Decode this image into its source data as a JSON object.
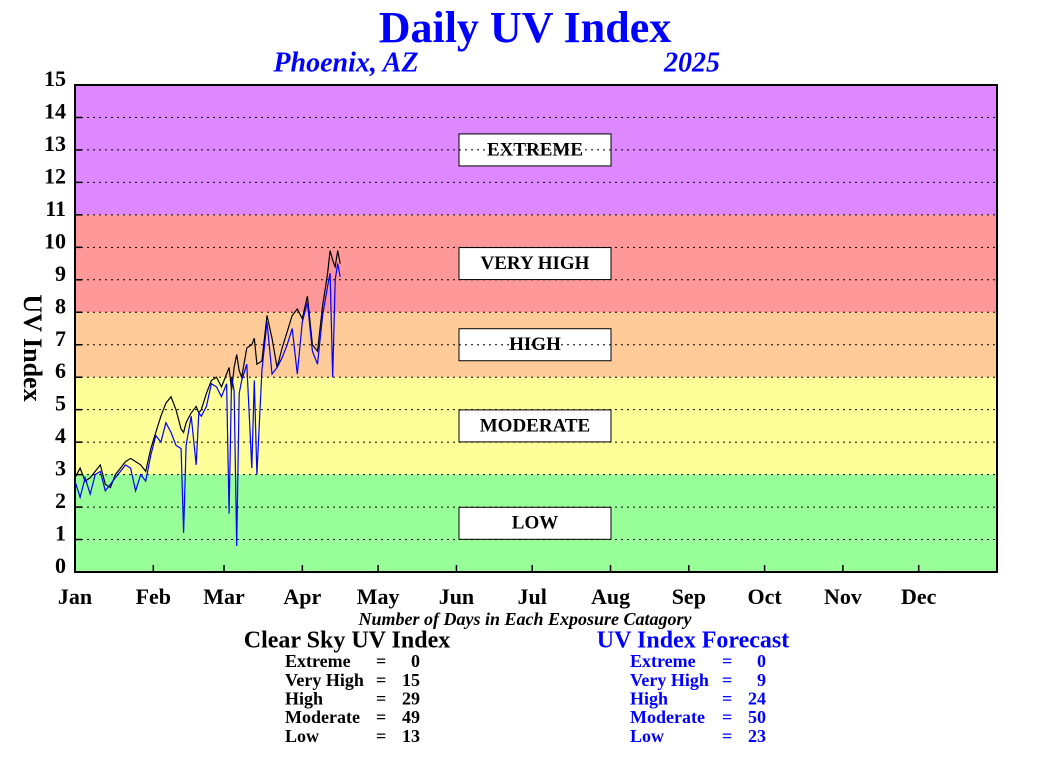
{
  "chart_data": {
    "type": "line",
    "title": "Daily UV Index",
    "subtitle": "Phoenix, AZ",
    "year": "2025",
    "ylabel": "UV Index",
    "xlim": [
      1,
      366
    ],
    "ylim": [
      0,
      15
    ],
    "yticks": [
      0,
      1,
      2,
      3,
      4,
      5,
      6,
      7,
      8,
      9,
      10,
      11,
      12,
      13,
      14,
      15
    ],
    "xticks": [
      {
        "value": 1,
        "label": "Jan"
      },
      {
        "value": 32,
        "label": "Feb"
      },
      {
        "value": 60,
        "label": "Mar"
      },
      {
        "value": 91,
        "label": "Apr"
      },
      {
        "value": 121,
        "label": "May"
      },
      {
        "value": 152,
        "label": "Jun"
      },
      {
        "value": 182,
        "label": "Jul"
      },
      {
        "value": 213,
        "label": "Aug"
      },
      {
        "value": 244,
        "label": "Sep"
      },
      {
        "value": 274,
        "label": "Oct"
      },
      {
        "value": 305,
        "label": "Nov"
      },
      {
        "value": 335,
        "label": "Dec"
      }
    ],
    "grid": true,
    "bands": [
      {
        "label": "EXTREME",
        "range": [
          11,
          15
        ],
        "color": "#dd88ff"
      },
      {
        "label": "VERY HIGH",
        "range": [
          8,
          11
        ],
        "color": "#ff9999"
      },
      {
        "label": "HIGH",
        "range": [
          6,
          8
        ],
        "color": "#ffcc99"
      },
      {
        "label": "MODERATE",
        "range": [
          3,
          6
        ],
        "color": "#ffff99"
      },
      {
        "label": "LOW",
        "range": [
          0,
          3
        ],
        "color": "#99ff99"
      }
    ],
    "x": [
      1,
      3,
      5,
      7,
      9,
      11,
      13,
      15,
      17,
      19,
      21,
      23,
      25,
      27,
      29,
      31,
      33,
      35,
      37,
      39,
      41,
      43,
      44,
      45,
      47,
      49,
      50,
      51,
      53,
      55,
      57,
      59,
      61,
      62,
      63,
      64,
      65,
      66,
      67,
      69,
      71,
      72,
      73,
      75,
      77,
      79,
      81,
      83,
      85,
      87,
      89,
      91,
      93,
      95,
      97,
      99,
      101,
      102,
      103,
      104,
      105,
      106
    ],
    "series": [
      {
        "name": "Clear Sky UV Index",
        "color": "#000000",
        "values": [
          2.9,
          3.2,
          2.8,
          2.9,
          3.1,
          3.3,
          2.7,
          2.6,
          3.0,
          3.2,
          3.4,
          3.5,
          3.4,
          3.3,
          3.1,
          3.8,
          4.3,
          4.8,
          5.2,
          5.4,
          5.0,
          4.4,
          4.3,
          4.6,
          4.9,
          5.1,
          4.9,
          5.0,
          5.5,
          5.9,
          6.0,
          5.7,
          6.1,
          6.3,
          5.6,
          6.3,
          6.7,
          6.2,
          6.0,
          6.9,
          7.0,
          7.2,
          6.4,
          6.5,
          7.9,
          7.2,
          6.3,
          6.9,
          7.4,
          7.9,
          8.1,
          7.8,
          8.5,
          7.0,
          6.8,
          8.2,
          9.2,
          9.9,
          9.6,
          9.4,
          9.9,
          9.5
        ]
      },
      {
        "name": "UV Index Forecast",
        "color": "#0000ff",
        "values": [
          2.8,
          2.3,
          2.9,
          2.4,
          3.0,
          3.1,
          2.5,
          2.7,
          2.9,
          3.1,
          3.3,
          3.2,
          2.5,
          3.0,
          2.8,
          3.6,
          4.2,
          4.0,
          4.6,
          4.3,
          3.9,
          3.8,
          1.2,
          3.9,
          4.8,
          3.3,
          4.9,
          4.8,
          5.1,
          5.8,
          5.7,
          5.4,
          5.8,
          1.8,
          6.0,
          5.6,
          0.8,
          5.5,
          5.9,
          6.4,
          3.2,
          5.9,
          3.0,
          6.2,
          7.7,
          6.1,
          6.3,
          6.6,
          7.0,
          7.5,
          6.1,
          7.7,
          8.3,
          6.8,
          6.4,
          7.9,
          8.8,
          9.2,
          6.0,
          9.0,
          9.5,
          9.1
        ]
      }
    ],
    "day_counts": {
      "title": "Number of Days in Each Exposure Catagory",
      "labels": [
        "Extreme",
        "Very High",
        "High",
        "Moderate",
        "Low"
      ],
      "separator": "=",
      "counts": [
        [
          0,
          15,
          29,
          49,
          13
        ],
        [
          0,
          9,
          24,
          50,
          23
        ]
      ]
    }
  }
}
